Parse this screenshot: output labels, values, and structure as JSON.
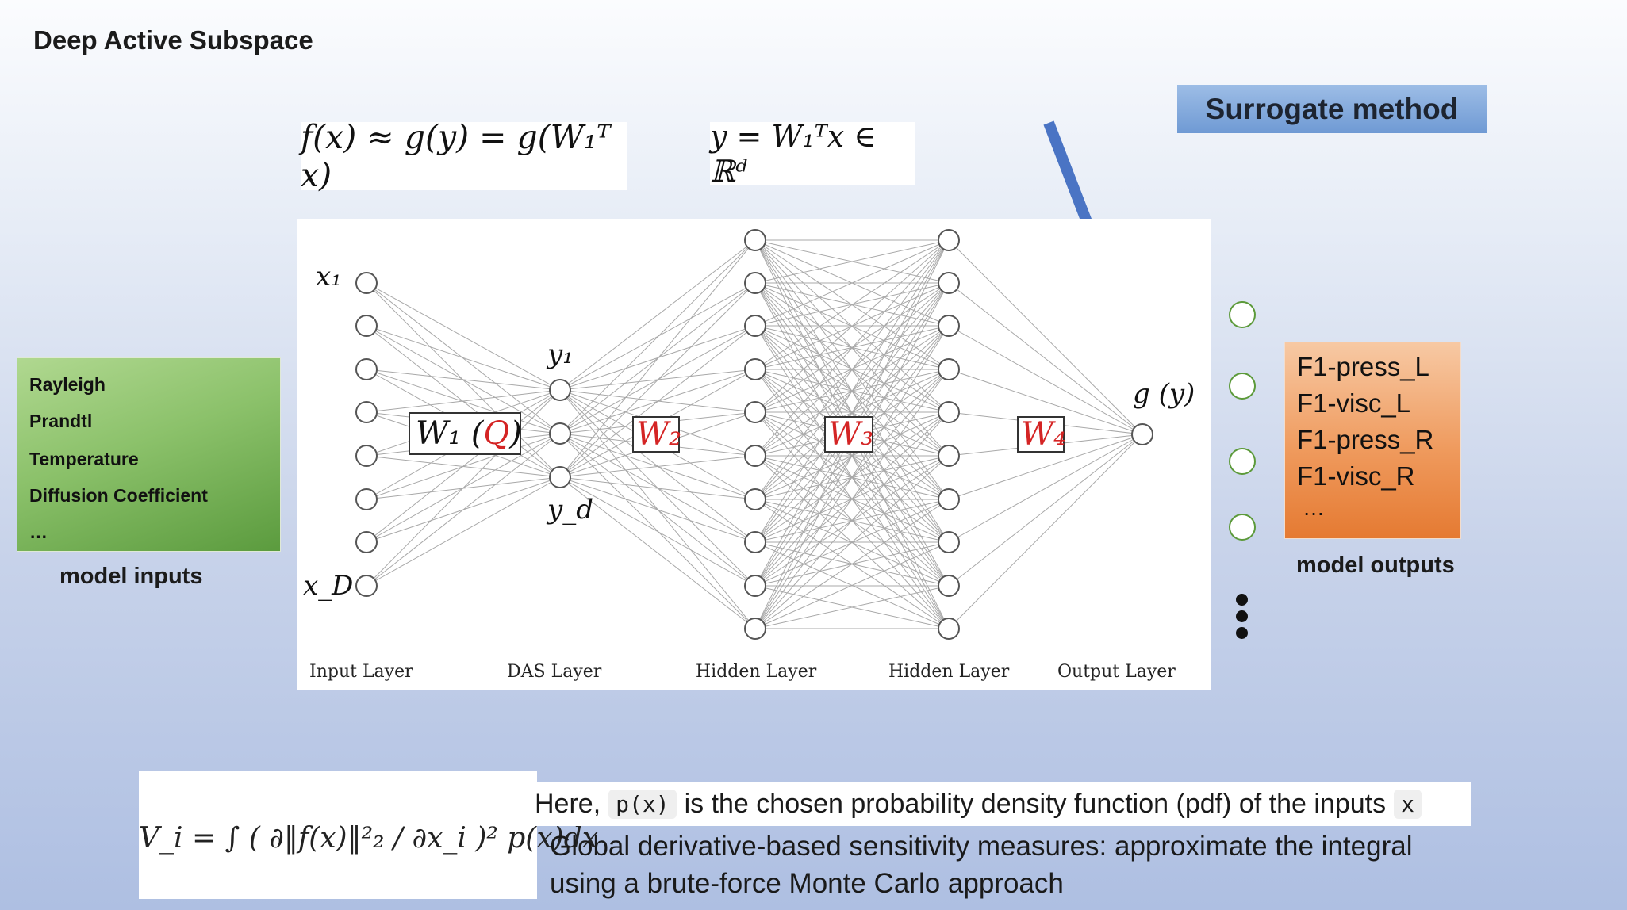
{
  "title": "Deep Active Subspace",
  "surrogate_label": "Surrogate method",
  "eq_top_left": "f(x) ≈ g(y) = g(W₁ᵀ x)",
  "eq_top_right": "y = W₁ᵀx ∈ ℝᵈ",
  "network": {
    "node_labels": {
      "x1": "x₁",
      "xD": "x_D",
      "y1": "y₁",
      "yd": "y_d",
      "gy": "g (y)"
    },
    "weights": {
      "w1": "W₁ (",
      "q": "Q",
      "w1_close": ")",
      "w2": "W₂",
      "w3": "W₃",
      "w4": "W₄"
    },
    "layer_labels": [
      "Input Layer",
      "DAS Layer",
      "Hidden Layer",
      "Hidden Layer",
      "Output Layer"
    ]
  },
  "model_inputs": {
    "items": [
      "Rayleigh",
      "Prandtl",
      "Temperature",
      "Diffusion Coefficient",
      "…"
    ],
    "caption": "model inputs"
  },
  "model_outputs": {
    "items": [
      "F1-press_L",
      "F1-visc_L",
      "F1-press_R",
      "F1-visc_R",
      "…"
    ],
    "caption": "model outputs"
  },
  "bottom_eq": "V_i = ∫ ( ∂‖f(x)‖²₂ / ∂x_i )² p(x)dx",
  "here_text": {
    "pre": "Here,",
    "code1": "p(x)",
    "mid": "is the chosen probability density function (pdf) of the inputs",
    "code2": "x"
  },
  "global_text": "Global derivative-based sensitivity measures: approximate the integral using a brute-force Monte Carlo approach",
  "colors": {
    "arrow": "#4a74c4",
    "weight_red": "#d42424",
    "edge": "#a8a8a8",
    "output_circle": "#5c9a3a"
  }
}
